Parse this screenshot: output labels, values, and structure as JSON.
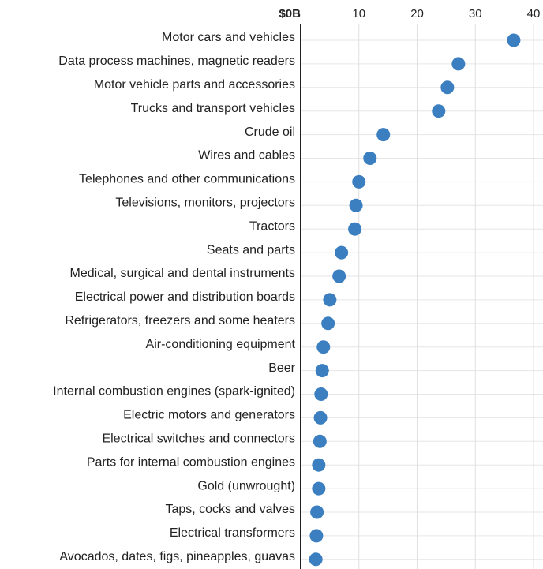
{
  "chart_data": {
    "type": "dot",
    "categories": [
      "Motor cars and vehicles",
      "Data process machines, magnetic readers",
      "Motor vehicle parts and accessories",
      "Trucks and transport vehicles",
      "Crude oil",
      "Wires and cables",
      "Telephones and other communications",
      "Televisions, monitors, projectors",
      "Tractors",
      "Seats and parts",
      "Medical, surgical and dental instruments",
      "Electrical power and distribution boards",
      "Refrigerators, freezers and some heaters",
      "Air-conditioning equipment",
      "Beer",
      "Internal combustion engines (spark-ignited)",
      "Electric motors and generators",
      "Electrical switches and connectors",
      "Parts for internal combustion engines",
      "Gold (unwrought)",
      "Taps, cocks and valves",
      "Electrical transformers",
      "Avocados, dates, figs, pineapples, guavas"
    ],
    "values": [
      36.6,
      27.1,
      25.2,
      23.7,
      14.2,
      11.9,
      10.0,
      9.5,
      9.3,
      7.0,
      6.6,
      5.0,
      4.7,
      3.9,
      3.7,
      3.5,
      3.4,
      3.3,
      3.1,
      3.1,
      2.8,
      2.7,
      2.6
    ],
    "color": "#3b7fc0",
    "xlim": [
      0,
      40
    ],
    "xticks": [
      {
        "value": 0,
        "label": "$0B"
      },
      10,
      20,
      30,
      40
    ],
    "grid": true
  }
}
